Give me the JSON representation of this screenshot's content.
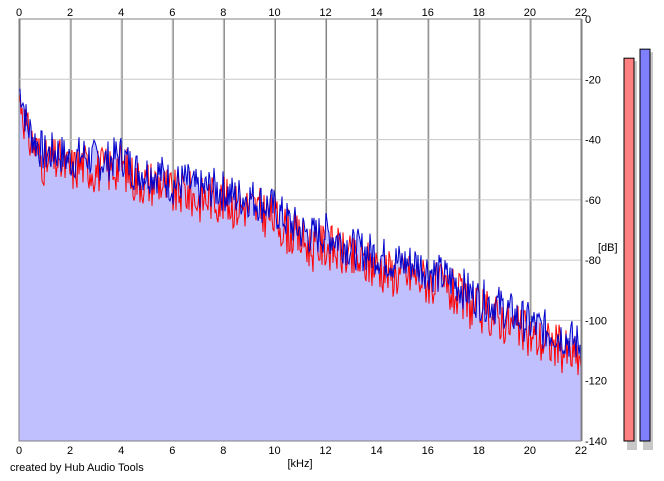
{
  "chart_data": {
    "type": "area",
    "title": "",
    "xlabel": "[kHz]",
    "ylabel": "[dB]",
    "xlim": [
      0,
      22
    ],
    "ylim": [
      -140,
      0
    ],
    "x_ticks": [
      0,
      2,
      4,
      6,
      8,
      10,
      12,
      14,
      16,
      18,
      20,
      22
    ],
    "x_tick_labels": [
      "0",
      "2",
      "4",
      "6",
      "8",
      "10",
      "12",
      "14",
      "16",
      "18",
      "20",
      "22"
    ],
    "y_ticks": [
      0,
      -20,
      -40,
      -60,
      -80,
      -100,
      -120,
      -140
    ],
    "y_tick_labels": [
      "0",
      "-20",
      "-40",
      "-60",
      "-80",
      "-100",
      "-120",
      "-140"
    ],
    "grid": true,
    "fill_color": "#c0c0ff",
    "series": [
      {
        "color": "#ff0000",
        "x": [
          0.1,
          0.3,
          0.6,
          1.0,
          1.5,
          2.0,
          2.5,
          3.0,
          3.5,
          4.0,
          4.5,
          5.0,
          5.5,
          6.0,
          6.5,
          7.0,
          7.5,
          8.0,
          8.5,
          9.0,
          9.5,
          10.0,
          10.5,
          11.0,
          11.5,
          12.0,
          12.5,
          13.0,
          13.5,
          14.0,
          14.5,
          15.0,
          15.5,
          16.0,
          16.5,
          17.0,
          17.5,
          18.0,
          18.5,
          19.0,
          19.5,
          20.0,
          20.5,
          21.0,
          21.5,
          22.0
        ],
        "values": [
          -27,
          -38,
          -42,
          -48,
          -47,
          -50,
          -48,
          -50,
          -50,
          -48,
          -53,
          -54,
          -54,
          -58,
          -57,
          -60,
          -59,
          -60,
          -62,
          -62,
          -64,
          -66,
          -70,
          -73,
          -76,
          -75,
          -77,
          -80,
          -81,
          -82,
          -84,
          -85,
          -85,
          -87,
          -89,
          -91,
          -94,
          -97,
          -98,
          -100,
          -103,
          -105,
          -107,
          -108,
          -111,
          -113
        ]
      },
      {
        "color": "#0000cc",
        "x": [
          0.1,
          0.3,
          0.6,
          1.0,
          1.5,
          2.0,
          2.5,
          3.0,
          3.5,
          4.0,
          4.5,
          5.0,
          5.5,
          6.0,
          6.5,
          7.0,
          7.5,
          8.0,
          8.5,
          9.0,
          9.5,
          10.0,
          10.5,
          11.0,
          11.5,
          12.0,
          12.5,
          13.0,
          13.5,
          14.0,
          14.5,
          15.0,
          15.5,
          16.0,
          16.5,
          17.0,
          17.5,
          18.0,
          18.5,
          19.0,
          19.5,
          20.0,
          20.5,
          21.0,
          21.5,
          22.0
        ],
        "values": [
          -24,
          -35,
          -40,
          -45,
          -44,
          -47,
          -45,
          -47,
          -47,
          -45,
          -50,
          -51,
          -51,
          -55,
          -54,
          -57,
          -56,
          -57,
          -59,
          -59,
          -61,
          -63,
          -67,
          -70,
          -72,
          -71,
          -73,
          -76,
          -77,
          -78,
          -80,
          -81,
          -81,
          -83,
          -85,
          -87,
          -90,
          -93,
          -94,
          -96,
          -99,
          -101,
          -103,
          -104,
          -106,
          -108
        ]
      }
    ],
    "level_meters": [
      {
        "color": "#ff8080",
        "level_db": -13
      },
      {
        "color": "#8080ff",
        "level_db": -10
      }
    ]
  },
  "credit": "created by Hub Audio Tools"
}
